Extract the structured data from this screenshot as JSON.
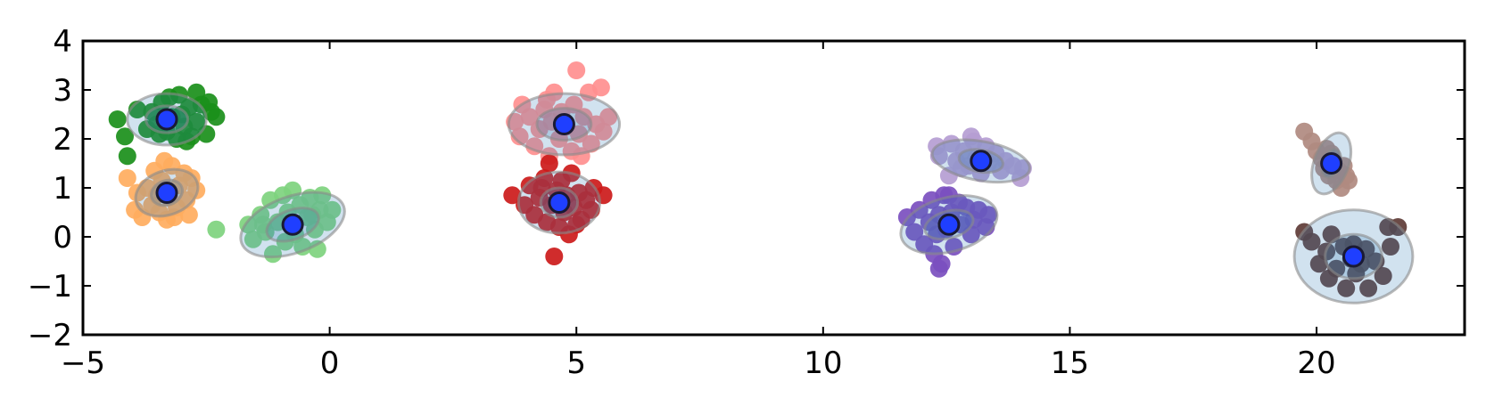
{
  "chart_data": {
    "type": "scatter",
    "title": "",
    "xlabel": "",
    "ylabel": "",
    "xlim": [
      -5,
      23
    ],
    "ylim": [
      -2,
      4
    ],
    "xticks": [
      -5,
      0,
      5,
      10,
      15,
      20
    ],
    "yticks": [
      -2,
      -1,
      0,
      1,
      2,
      3,
      4
    ],
    "xtick_labels": [
      "−5",
      "0",
      "5",
      "10",
      "15",
      "20"
    ],
    "ytick_labels": [
      "−2",
      "−1",
      "0",
      "1",
      "2",
      "3",
      "4"
    ],
    "grid": false,
    "legend": "none",
    "center_color": "#1f3fff",
    "ellipse_color": "#2e7ab8",
    "clusters": [
      {
        "color": "#1a8f1a",
        "center": [
          -3.3,
          2.4
        ],
        "ellipses": [
          {
            "w": 1.6,
            "h": 1.05,
            "angle": 0
          },
          {
            "w": 0.85,
            "h": 0.55,
            "angle": 0
          }
        ],
        "points": [
          [
            -4.3,
            2.4
          ],
          [
            -4.15,
            2.05
          ],
          [
            -4.1,
            1.65
          ],
          [
            -3.9,
            2.6
          ],
          [
            -3.7,
            2.2
          ],
          [
            -3.6,
            2.55
          ],
          [
            -3.5,
            2.3
          ],
          [
            -3.4,
            2.75
          ],
          [
            -3.3,
            2.15
          ],
          [
            -3.2,
            2.45
          ],
          [
            -3.1,
            2.0
          ],
          [
            -3.05,
            2.9
          ],
          [
            -3.0,
            2.5
          ],
          [
            -2.95,
            2.25
          ],
          [
            -2.85,
            2.65
          ],
          [
            -2.8,
            2.05
          ],
          [
            -2.7,
            2.95
          ],
          [
            -2.7,
            2.35
          ],
          [
            -2.6,
            2.7
          ],
          [
            -2.5,
            2.1
          ],
          [
            -2.4,
            2.55
          ],
          [
            -2.3,
            2.45
          ],
          [
            -2.45,
            2.75
          ],
          [
            -3.25,
            2.85
          ],
          [
            -3.45,
            2.1
          ],
          [
            -2.9,
            1.95
          ]
        ]
      },
      {
        "color": "#ffad5e",
        "center": [
          -3.3,
          0.9
        ],
        "ellipses": [
          {
            "w": 1.3,
            "h": 0.9,
            "angle": 20
          },
          {
            "w": 0.65,
            "h": 0.5,
            "angle": 20
          }
        ],
        "points": [
          [
            -4.1,
            1.2
          ],
          [
            -3.95,
            0.55
          ],
          [
            -3.9,
            0.9
          ],
          [
            -3.8,
            0.4
          ],
          [
            -3.7,
            1.0
          ],
          [
            -3.6,
            0.65
          ],
          [
            -3.55,
            1.35
          ],
          [
            -3.45,
            0.5
          ],
          [
            -3.4,
            1.15
          ],
          [
            -3.3,
            0.35
          ],
          [
            -3.25,
            0.8
          ],
          [
            -3.2,
            1.45
          ],
          [
            -3.1,
            0.6
          ],
          [
            -3.05,
            1.05
          ],
          [
            -2.95,
            1.3
          ],
          [
            -2.9,
            0.75
          ],
          [
            -2.85,
            0.45
          ],
          [
            -2.8,
            1.2
          ],
          [
            -2.7,
            0.95
          ],
          [
            -3.5,
            0.85
          ],
          [
            -3.35,
            1.55
          ],
          [
            -3.15,
            0.4
          ]
        ]
      },
      {
        "color": "#7ed37e",
        "center": [
          -0.75,
          0.25
        ],
        "ellipses": [
          {
            "w": 2.2,
            "h": 1.15,
            "angle": 20
          },
          {
            "w": 1.1,
            "h": 0.6,
            "angle": 20
          }
        ],
        "points": [
          [
            -2.3,
            0.15
          ],
          [
            -1.65,
            0.25
          ],
          [
            -1.55,
            -0.05
          ],
          [
            -1.4,
            0.45
          ],
          [
            -1.3,
            0.1
          ],
          [
            -1.2,
            0.75
          ],
          [
            -1.15,
            -0.35
          ],
          [
            -1.05,
            0.3
          ],
          [
            -0.95,
            0.85
          ],
          [
            -0.9,
            -0.1
          ],
          [
            -0.85,
            0.5
          ],
          [
            -0.75,
            0.95
          ],
          [
            -0.7,
            0.05
          ],
          [
            -0.6,
            0.65
          ],
          [
            -0.55,
            -0.2
          ],
          [
            -0.45,
            0.4
          ],
          [
            -0.4,
            0.8
          ],
          [
            -0.3,
            0.15
          ],
          [
            -0.25,
            -0.25
          ],
          [
            -0.2,
            0.55
          ],
          [
            -0.15,
            0.85
          ],
          [
            -0.05,
            0.3
          ],
          [
            0.05,
            0.55
          ],
          [
            -1.35,
            0.25
          ],
          [
            -0.35,
            0.45
          ]
        ]
      },
      {
        "color": "#ff8f8f",
        "center": [
          4.75,
          2.3
        ],
        "ellipses": [
          {
            "w": 2.25,
            "h": 1.25,
            "angle": 0
          },
          {
            "w": 1.1,
            "h": 0.65,
            "angle": 0
          }
        ],
        "points": [
          [
            3.75,
            2.35
          ],
          [
            3.85,
            2.05
          ],
          [
            3.9,
            2.7
          ],
          [
            4.05,
            2.45
          ],
          [
            4.15,
            1.85
          ],
          [
            4.25,
            2.2
          ],
          [
            4.35,
            2.6
          ],
          [
            4.45,
            1.65
          ],
          [
            4.5,
            2.35
          ],
          [
            4.55,
            2.95
          ],
          [
            4.65,
            2.0
          ],
          [
            4.7,
            2.55
          ],
          [
            4.8,
            2.25
          ],
          [
            4.9,
            1.75
          ],
          [
            4.95,
            2.7
          ],
          [
            5.0,
            3.4
          ],
          [
            5.05,
            2.1
          ],
          [
            5.15,
            2.45
          ],
          [
            5.25,
            2.95
          ],
          [
            5.3,
            1.9
          ],
          [
            5.4,
            2.3
          ],
          [
            5.5,
            3.05
          ],
          [
            5.55,
            2.15
          ],
          [
            5.65,
            2.45
          ],
          [
            4.4,
            2.8
          ],
          [
            5.1,
            1.65
          ]
        ]
      },
      {
        "color": "#cc1a1a",
        "center": [
          4.65,
          0.7
        ],
        "ellipses": [
          {
            "w": 1.65,
            "h": 1.25,
            "angle": 0
          },
          {
            "w": 0.75,
            "h": 0.6,
            "angle": 0
          }
        ],
        "points": [
          [
            3.7,
            0.85
          ],
          [
            3.95,
            0.65
          ],
          [
            4.05,
            1.05
          ],
          [
            4.15,
            0.45
          ],
          [
            4.25,
            0.8
          ],
          [
            4.35,
            1.2
          ],
          [
            4.4,
            0.3
          ],
          [
            4.45,
            1.5
          ],
          [
            4.5,
            0.65
          ],
          [
            4.6,
            0.95
          ],
          [
            4.65,
            0.2
          ],
          [
            4.7,
            1.15
          ],
          [
            4.75,
            0.5
          ],
          [
            4.8,
            0.85
          ],
          [
            4.85,
            0.05
          ],
          [
            4.9,
            1.3
          ],
          [
            4.95,
            0.6
          ],
          [
            5.05,
            0.9
          ],
          [
            5.1,
            0.35
          ],
          [
            5.2,
            0.75
          ],
          [
            5.3,
            0.55
          ],
          [
            5.35,
            1.0
          ],
          [
            5.55,
            0.85
          ],
          [
            4.55,
            -0.4
          ],
          [
            4.3,
            1.0
          ],
          [
            5.0,
            0.25
          ]
        ]
      },
      {
        "color": "#b59dd3",
        "center": [
          13.2,
          1.55
        ],
        "ellipses": [
          {
            "w": 2.0,
            "h": 0.8,
            "angle": -10
          },
          {
            "w": 0.9,
            "h": 0.45,
            "angle": -10
          }
        ],
        "points": [
          [
            12.3,
            1.85
          ],
          [
            12.35,
            1.65
          ],
          [
            12.55,
            1.25
          ],
          [
            12.6,
            1.9
          ],
          [
            12.7,
            1.55
          ],
          [
            12.85,
            1.75
          ],
          [
            12.95,
            1.45
          ],
          [
            13.05,
            1.95
          ],
          [
            13.1,
            1.6
          ],
          [
            13.2,
            1.3
          ],
          [
            13.3,
            1.85
          ],
          [
            13.35,
            1.5
          ],
          [
            13.5,
            1.7
          ],
          [
            13.6,
            1.35
          ],
          [
            13.7,
            1.55
          ],
          [
            13.85,
            1.45
          ],
          [
            14.0,
            1.2
          ],
          [
            14.05,
            1.4
          ],
          [
            13.0,
            2.05
          ],
          [
            12.8,
            1.4
          ]
        ]
      },
      {
        "color": "#7b4fbf",
        "center": [
          12.55,
          0.25
        ],
        "ellipses": [
          {
            "w": 2.0,
            "h": 1.1,
            "angle": 15
          },
          {
            "w": 1.0,
            "h": 0.55,
            "angle": 15
          }
        ],
        "points": [
          [
            11.7,
            0.4
          ],
          [
            11.85,
            0.1
          ],
          [
            11.95,
            0.55
          ],
          [
            12.05,
            -0.15
          ],
          [
            12.15,
            0.3
          ],
          [
            12.2,
            0.75
          ],
          [
            12.25,
            -0.35
          ],
          [
            12.3,
            0.05
          ],
          [
            12.35,
            0.45
          ],
          [
            12.4,
            -0.55
          ],
          [
            12.45,
            0.85
          ],
          [
            12.5,
            0.15
          ],
          [
            12.6,
            0.5
          ],
          [
            12.65,
            -0.2
          ],
          [
            12.75,
            0.7
          ],
          [
            12.8,
            0.25
          ],
          [
            12.9,
            0.6
          ],
          [
            13.0,
            0.05
          ],
          [
            13.05,
            0.35
          ],
          [
            13.15,
            0.55
          ],
          [
            13.3,
            0.2
          ],
          [
            13.35,
            0.45
          ],
          [
            12.35,
            -0.65
          ],
          [
            12.55,
            0.85
          ]
        ]
      },
      {
        "color": "#b08a80",
        "center": [
          20.3,
          1.5
        ],
        "ellipses": [
          {
            "w": 0.7,
            "h": 1.3,
            "angle": -20
          },
          {
            "w": 0.35,
            "h": 0.6,
            "angle": -20
          }
        ],
        "points": [
          [
            19.75,
            2.15
          ],
          [
            19.9,
            1.95
          ],
          [
            20.0,
            1.75
          ],
          [
            20.1,
            1.6
          ],
          [
            20.15,
            1.4
          ],
          [
            20.2,
            1.8
          ],
          [
            20.25,
            1.25
          ],
          [
            20.35,
            1.55
          ],
          [
            20.4,
            1.15
          ],
          [
            20.45,
            1.35
          ],
          [
            20.55,
            1.45
          ],
          [
            20.6,
            1.25
          ],
          [
            20.65,
            1.15
          ],
          [
            20.5,
            1.0
          ],
          [
            20.3,
            1.7
          ]
        ]
      },
      {
        "color": "#5e3b36",
        "center": [
          20.75,
          -0.4
        ],
        "ellipses": [
          {
            "w": 2.4,
            "h": 1.9,
            "angle": 0
          },
          {
            "w": 1.15,
            "h": 0.9,
            "angle": 0
          }
        ],
        "points": [
          [
            19.75,
            0.1
          ],
          [
            19.9,
            -0.1
          ],
          [
            20.05,
            -0.55
          ],
          [
            20.2,
            -0.3
          ],
          [
            20.3,
            0.05
          ],
          [
            20.4,
            -0.65
          ],
          [
            20.55,
            -0.2
          ],
          [
            20.6,
            -1.05
          ],
          [
            20.7,
            -0.45
          ],
          [
            20.8,
            -0.75
          ],
          [
            20.9,
            -0.55
          ],
          [
            21.0,
            -0.25
          ],
          [
            21.05,
            -1.05
          ],
          [
            21.2,
            -0.5
          ],
          [
            21.35,
            -0.8
          ],
          [
            21.5,
            -0.2
          ],
          [
            21.65,
            0.2
          ],
          [
            21.45,
            0.2
          ],
          [
            20.75,
            -0.15
          ],
          [
            20.25,
            -0.85
          ]
        ]
      }
    ]
  }
}
